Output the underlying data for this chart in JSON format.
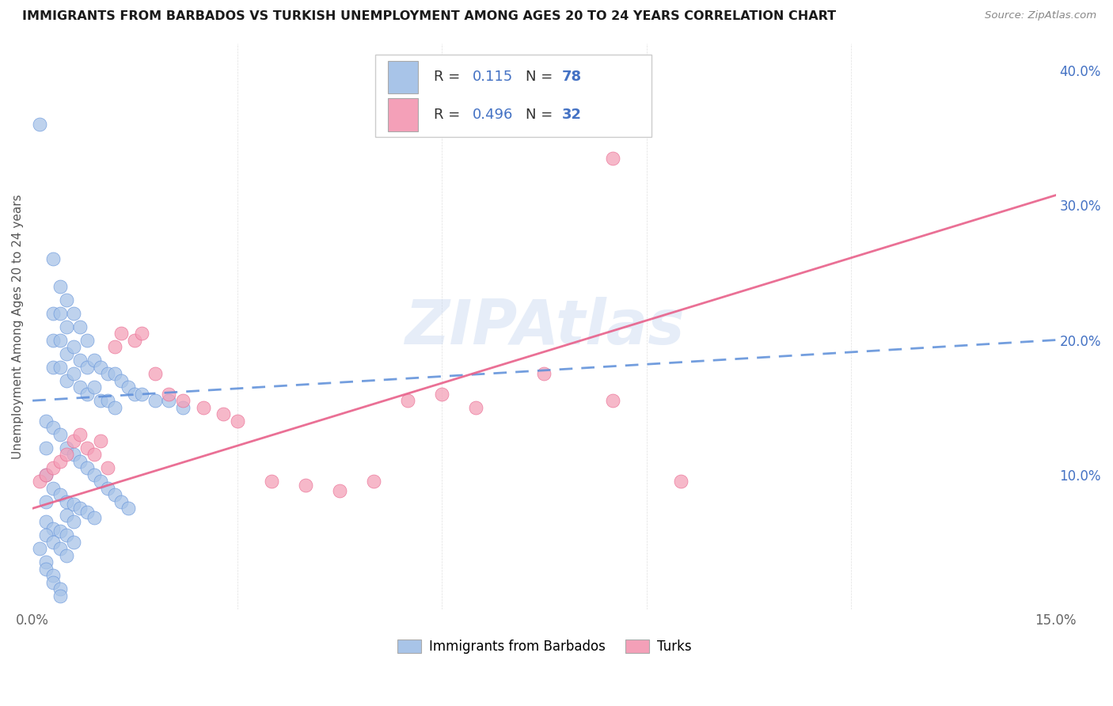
{
  "title": "IMMIGRANTS FROM BARBADOS VS TURKISH UNEMPLOYMENT AMONG AGES 20 TO 24 YEARS CORRELATION CHART",
  "source": "Source: ZipAtlas.com",
  "ylabel": "Unemployment Among Ages 20 to 24 years",
  "xlim": [
    0.0,
    0.15
  ],
  "ylim": [
    0.0,
    0.42
  ],
  "R_blue": 0.115,
  "N_blue": 78,
  "R_pink": 0.496,
  "N_pink": 32,
  "color_blue": "#a8c4e8",
  "color_pink": "#f4a0b8",
  "line_blue": "#5b8dd9",
  "line_pink": "#e8608a",
  "legend_label_blue": "Immigrants from Barbados",
  "legend_label_pink": "Turks",
  "blue_intercept": 0.155,
  "blue_slope": 0.3,
  "pink_intercept": 0.075,
  "pink_slope": 1.55,
  "blue_x": [
    0.001,
    0.002,
    0.002,
    0.002,
    0.003,
    0.003,
    0.003,
    0.003,
    0.004,
    0.004,
    0.004,
    0.004,
    0.005,
    0.005,
    0.005,
    0.005,
    0.006,
    0.006,
    0.006,
    0.007,
    0.007,
    0.007,
    0.008,
    0.008,
    0.008,
    0.009,
    0.009,
    0.01,
    0.01,
    0.011,
    0.011,
    0.012,
    0.012,
    0.013,
    0.014,
    0.015,
    0.016,
    0.018,
    0.02,
    0.022,
    0.002,
    0.003,
    0.004,
    0.005,
    0.006,
    0.007,
    0.008,
    0.009,
    0.01,
    0.011,
    0.012,
    0.013,
    0.014,
    0.003,
    0.004,
    0.005,
    0.006,
    0.007,
    0.008,
    0.009,
    0.002,
    0.003,
    0.004,
    0.005,
    0.006,
    0.001,
    0.002,
    0.003,
    0.004,
    0.005,
    0.002,
    0.002,
    0.003,
    0.003,
    0.004,
    0.004,
    0.005,
    0.006
  ],
  "blue_y": [
    0.36,
    0.08,
    0.1,
    0.12,
    0.26,
    0.22,
    0.2,
    0.18,
    0.24,
    0.22,
    0.2,
    0.18,
    0.23,
    0.21,
    0.19,
    0.17,
    0.22,
    0.195,
    0.175,
    0.21,
    0.185,
    0.165,
    0.2,
    0.18,
    0.16,
    0.185,
    0.165,
    0.18,
    0.155,
    0.175,
    0.155,
    0.175,
    0.15,
    0.17,
    0.165,
    0.16,
    0.16,
    0.155,
    0.155,
    0.15,
    0.14,
    0.135,
    0.13,
    0.12,
    0.115,
    0.11,
    0.105,
    0.1,
    0.095,
    0.09,
    0.085,
    0.08,
    0.075,
    0.09,
    0.085,
    0.08,
    0.078,
    0.075,
    0.072,
    0.068,
    0.065,
    0.06,
    0.058,
    0.055,
    0.05,
    0.045,
    0.055,
    0.05,
    0.045,
    0.04,
    0.035,
    0.03,
    0.025,
    0.02,
    0.015,
    0.01,
    0.07,
    0.065
  ],
  "pink_x": [
    0.001,
    0.002,
    0.003,
    0.004,
    0.005,
    0.006,
    0.007,
    0.008,
    0.009,
    0.01,
    0.011,
    0.012,
    0.013,
    0.015,
    0.016,
    0.018,
    0.02,
    0.022,
    0.025,
    0.028,
    0.03,
    0.035,
    0.04,
    0.045,
    0.05,
    0.055,
    0.06,
    0.065,
    0.075,
    0.085,
    0.095,
    0.085
  ],
  "pink_y": [
    0.095,
    0.1,
    0.105,
    0.11,
    0.115,
    0.125,
    0.13,
    0.12,
    0.115,
    0.125,
    0.105,
    0.195,
    0.205,
    0.2,
    0.205,
    0.175,
    0.16,
    0.155,
    0.15,
    0.145,
    0.14,
    0.095,
    0.092,
    0.088,
    0.095,
    0.155,
    0.16,
    0.15,
    0.175,
    0.155,
    0.095,
    0.335
  ]
}
